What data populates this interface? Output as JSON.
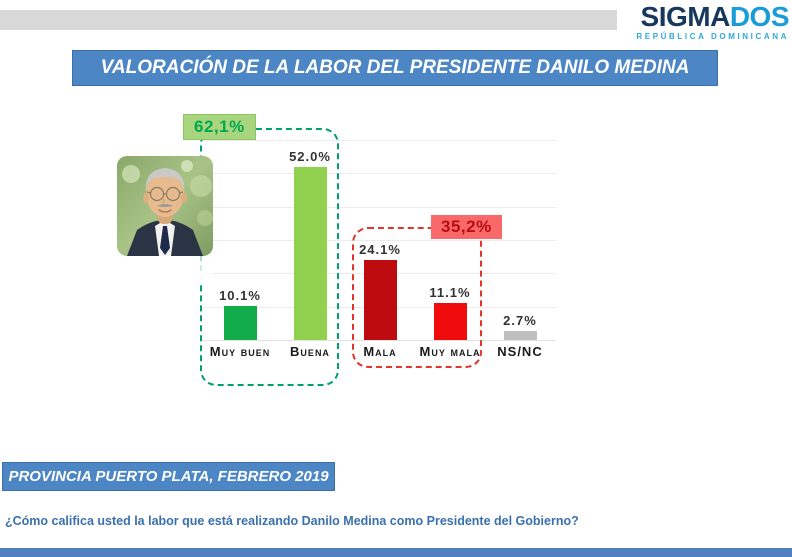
{
  "logo": {
    "part1": "SIGMA",
    "part2": "DOS",
    "subtitle": "REPÚBLICA DOMINICANA"
  },
  "title": "VALORACIÓN DE LA LABOR DEL PRESIDENTE DANILO MEDINA",
  "footer": {
    "region_banner": "PROVINCIA PUERTO PLATA, FEBRERO 2019",
    "question": "¿Cómo califica usted la labor que está realizando Danilo Medina como Presidente del Gobierno?"
  },
  "colors": {
    "banner_blue": "#4D86C4",
    "bottom_bar_blue": "#4E81BD",
    "positive_dark_green": "#12AC4B",
    "positive_light_green": "#92D050",
    "negative_dark_red": "#BE0B10",
    "negative_bright_red": "#F00C0C",
    "neutral_gray": "#BFBFBF",
    "green_group_border": "#00A16B",
    "red_group_border": "#E0362C",
    "green_badge_bg": "#A8D57E",
    "green_badge_text": "#00A94F",
    "red_badge_bg": "#F9696A",
    "red_badge_text": "#B90D10"
  },
  "chart_data": {
    "type": "bar",
    "title": "VALORACIÓN DE LA LABOR DEL PRESIDENTE DANILO MEDINA",
    "categories": [
      "Muy buen",
      "Buena",
      "Mala",
      "Muy mala",
      "NS/NC"
    ],
    "values": [
      10.1,
      52.0,
      24.1,
      11.1,
      2.7
    ],
    "value_labels": [
      "10.1%",
      "52.0%",
      "24.1%",
      "11.1%",
      "2.7%"
    ],
    "bar_colors": [
      "#12AC4B",
      "#92D050",
      "#BE0B10",
      "#F00C0C",
      "#BFBFBF"
    ],
    "xlabel": "",
    "ylabel": "",
    "ylim": [
      0,
      60
    ],
    "grid": true,
    "gridline_step": 10,
    "legend": "none",
    "groups": [
      {
        "label": "62,1%",
        "sum": 62.1,
        "members": [
          "Muy buen",
          "Buena"
        ],
        "sentiment": "positive"
      },
      {
        "label": "35,2%",
        "sum": 35.2,
        "members": [
          "Mala",
          "Muy mala"
        ],
        "sentiment": "negative"
      }
    ]
  }
}
